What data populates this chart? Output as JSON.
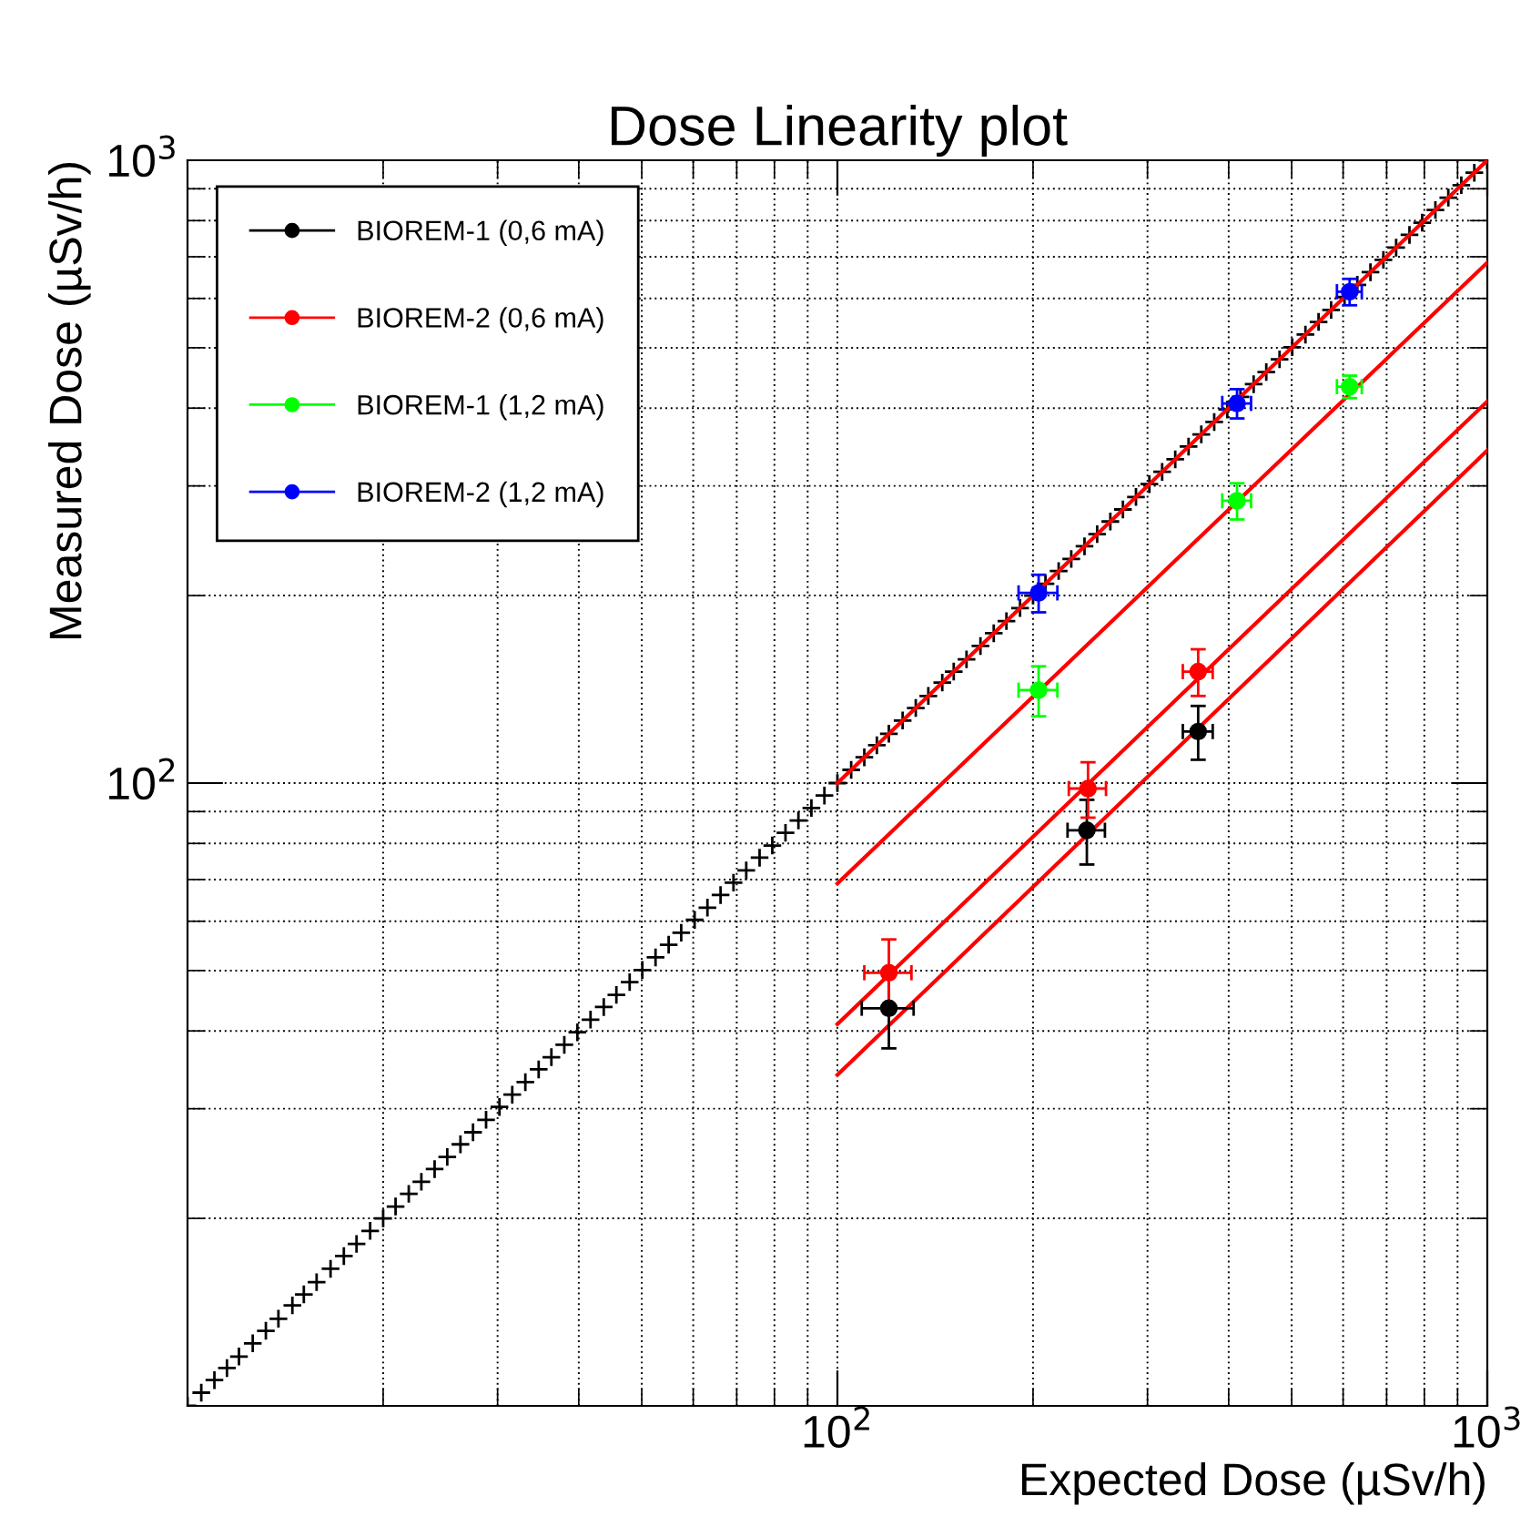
{
  "chart_data": {
    "type": "scatter",
    "title": "Dose Linearity plot",
    "xlabel": "Expected Dose (µSv/h)",
    "ylabel": "Measured Dose (µSv/h)",
    "log": "xy",
    "xlim": [
      10,
      1000
    ],
    "ylim": [
      10,
      1000
    ],
    "xticks": [
      {
        "value": 100,
        "label": "10$^{2}$"
      },
      {
        "value": 1000,
        "label": "10$^{3}$"
      }
    ],
    "yticks": [
      {
        "value": 100,
        "label": "10$^{2}$"
      },
      {
        "value": 1000,
        "label": "10$^{3}$"
      }
    ],
    "grid": true,
    "legend": "top left",
    "series": [
      {
        "marker": "cross",
        "color": "#000000",
        "x": [
          10,
          10.5,
          11,
          11.5,
          12,
          12.6,
          13.2,
          13.8,
          14.5,
          15.1,
          15.8,
          16.6,
          17.4,
          18.2,
          19.1,
          20,
          20.9,
          21.9,
          22.9,
          24,
          25.1,
          26.3,
          27.5,
          28.8,
          30.2,
          31.6,
          33.1,
          34.7,
          36.3,
          38,
          39.8,
          41.7,
          43.7,
          45.7,
          47.9,
          50.1,
          52.5,
          55,
          57.5,
          60.3,
          63.1,
          66.1,
          69.2,
          72.4,
          75.9,
          79.4,
          83.2,
          87.1,
          91.2,
          95.5,
          100,
          105,
          110,
          115,
          120,
          126,
          132,
          138,
          145,
          151,
          158,
          166,
          174,
          182,
          191,
          200,
          209,
          219,
          229,
          240,
          251,
          263,
          275,
          288,
          302,
          316,
          331,
          347,
          363,
          380,
          398,
          417,
          437,
          457,
          479,
          501,
          525,
          550,
          575,
          603,
          631,
          661,
          692,
          724,
          759,
          794,
          832,
          871,
          912,
          955,
          1000
        ],
        "values": [
          10,
          10.5,
          11,
          11.5,
          12,
          12.6,
          13.2,
          13.8,
          14.5,
          15.1,
          15.8,
          16.6,
          17.4,
          18.2,
          19.1,
          20,
          20.9,
          21.9,
          22.9,
          24,
          25.1,
          26.3,
          27.5,
          28.8,
          30.2,
          31.6,
          33.1,
          34.7,
          36.3,
          38,
          39.8,
          41.7,
          43.7,
          45.7,
          47.9,
          50.1,
          52.5,
          55,
          57.5,
          60.3,
          63.1,
          66.1,
          69.2,
          72.4,
          75.9,
          79.4,
          83.2,
          87.1,
          91.2,
          95.5,
          100,
          105,
          110,
          115,
          120,
          126,
          132,
          138,
          145,
          151,
          158,
          166,
          174,
          182,
          191,
          200,
          209,
          219,
          229,
          240,
          251,
          263,
          275,
          288,
          302,
          316,
          331,
          347,
          363,
          380,
          398,
          417,
          437,
          457,
          479,
          501,
          525,
          550,
          575,
          603,
          631,
          661,
          692,
          724,
          759,
          794,
          832,
          871,
          912,
          955,
          1000
        ]
      },
      {
        "type": "line",
        "color": "#ff0000",
        "x": [
          100,
          1000
        ],
        "values": [
          100,
          1000
        ]
      },
      {
        "type": "line",
        "color": "#ff0000",
        "x": [
          100,
          1000
        ],
        "values": [
          69,
          685
        ]
      },
      {
        "type": "line",
        "color": "#ff0000",
        "x": [
          100,
          1000
        ],
        "values": [
          41,
          410
        ]
      },
      {
        "type": "line",
        "color": "#ff0000",
        "x": [
          100,
          1000
        ],
        "values": [
          34,
          342
        ]
      },
      {
        "marker": "circle",
        "name": "BIOREM-1 (0,6 mA)",
        "color": "#000000",
        "x": [
          120,
          242,
          359
        ],
        "values": [
          43.5,
          84,
          121
        ],
        "errors": [
          6,
          10,
          12
        ],
        "xerrors": [
          11,
          16,
          19
        ]
      },
      {
        "marker": "circle",
        "name": "BIOREM-2 (0,6 mA)",
        "color": "#ff0000",
        "x": [
          120,
          243,
          359
        ],
        "values": [
          49.6,
          98,
          151
        ],
        "errors": [
          6.5,
          10,
          13
        ],
        "xerrors": [
          10,
          16,
          19
        ]
      },
      {
        "marker": "circle",
        "name": "BIOREM-1 (1,2 mA)",
        "color": "#00ff00",
        "x": [
          204,
          412,
          614
        ],
        "values": [
          141,
          284,
          433
        ],
        "errors": [
          13,
          19,
          18
        ],
        "xerrors": [
          14,
          21,
          27
        ]
      },
      {
        "marker": "circle",
        "name": "BIOREM-2 (1,2 mA)",
        "color": "#0000ff",
        "x": [
          204,
          412,
          614
        ],
        "values": [
          202,
          407,
          615
        ],
        "errors": [
          14,
          22,
          30
        ],
        "xerrors": [
          14,
          21,
          27
        ]
      }
    ]
  }
}
